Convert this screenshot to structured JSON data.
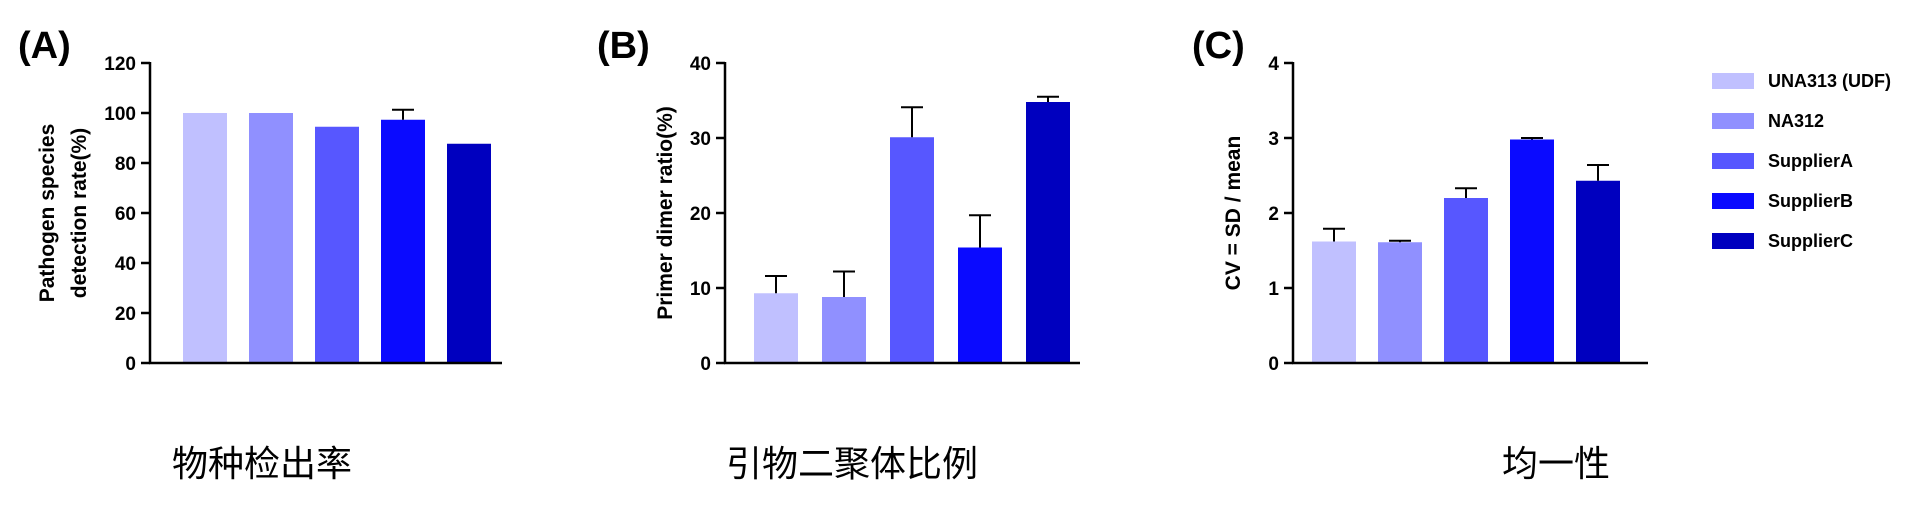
{
  "colors": [
    "#c0c0ff",
    "#9090ff",
    "#5757ff",
    "#0a0aff",
    "#0000bf"
  ],
  "legend": {
    "position": "right",
    "entries": [
      "UNA313 (UDF)",
      "NA312",
      "SupplierA",
      "SupplierB",
      "SupplierC"
    ]
  },
  "chart_data": [
    {
      "type": "bar",
      "panel": "(A)",
      "ylabel_lines": [
        "Pathogen species",
        "detection rate(%)"
      ],
      "xlabel": "",
      "ylim": [
        0,
        120
      ],
      "yticks": [
        0,
        20,
        40,
        60,
        80,
        100,
        120
      ],
      "categories": [
        "UNA313 (UDF)",
        "NA312",
        "SupplierA",
        "SupplierB",
        "SupplierC"
      ],
      "values": [
        100,
        100,
        94.5,
        97.3,
        87.7
      ],
      "errors": [
        0,
        0,
        0,
        4.0,
        0
      ],
      "caption": "物种检出率"
    },
    {
      "type": "bar",
      "panel": "(B)",
      "ylabel_lines": [
        "Primer dimer ratio(%)"
      ],
      "xlabel": "",
      "ylim": [
        0,
        40
      ],
      "yticks": [
        0,
        10,
        20,
        30,
        40
      ],
      "categories": [
        "UNA313 (UDF)",
        "NA312",
        "SupplierA",
        "SupplierB",
        "SupplierC"
      ],
      "values": [
        9.3,
        8.8,
        30.1,
        15.4,
        34.8
      ],
      "errors": [
        2.3,
        3.4,
        4.0,
        4.3,
        0.7
      ],
      "caption": "引物二聚体比例"
    },
    {
      "type": "bar",
      "panel": "(C)",
      "ylabel_lines": [
        "CV = SD / mean"
      ],
      "xlabel": "",
      "ylim": [
        0,
        4
      ],
      "yticks": [
        0,
        1,
        2,
        3,
        4
      ],
      "categories": [
        "UNA313 (UDF)",
        "NA312",
        "SupplierA",
        "SupplierB",
        "SupplierC"
      ],
      "values": [
        1.62,
        1.61,
        2.2,
        2.98,
        2.43
      ],
      "errors": [
        0.17,
        0.02,
        0.13,
        0.02,
        0.21
      ],
      "caption": "均一性"
    }
  ]
}
